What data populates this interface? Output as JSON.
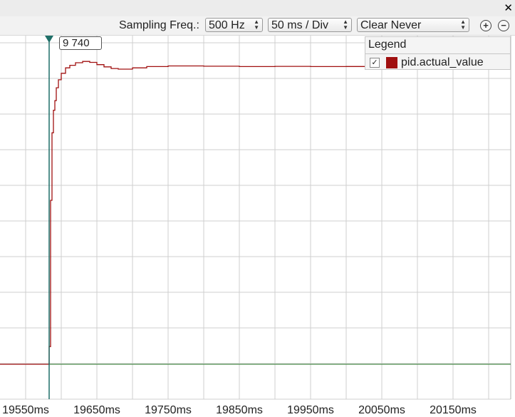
{
  "window": {
    "close_label": "✕"
  },
  "toolbar": {
    "sampling_label": "Sampling Freq.:",
    "sampling_value": "500 Hz",
    "div_value": "50 ms / Div",
    "clear_value": "Clear Never",
    "zoom_in": "+",
    "zoom_out": "−"
  },
  "legend": {
    "title": "Legend",
    "check": "✓",
    "series_label": "pid.actual_value",
    "series_color": "#a01010"
  },
  "cursor": {
    "value": "9 740",
    "color": "#1f6f68"
  },
  "baseline_color": "#2a7a2a",
  "chart_data": {
    "type": "line",
    "x_tick_labels": [
      "19550ms",
      "19650ms",
      "19750ms",
      "19850ms",
      "19950ms",
      "20050ms",
      "20150ms"
    ],
    "x_ticks": [
      19550,
      19650,
      19750,
      19850,
      19950,
      20050,
      20150
    ],
    "xlim": [
      19514,
      20231
    ],
    "ylim": [
      0,
      10000
    ],
    "cursor_x": 19583,
    "series": [
      {
        "name": "pid.actual_value",
        "points": [
          [
            19514,
            0
          ],
          [
            19582,
            0
          ],
          [
            19583,
            550
          ],
          [
            19585,
            5100
          ],
          [
            19587,
            7200
          ],
          [
            19589,
            7900
          ],
          [
            19591,
            8200
          ],
          [
            19593,
            8600
          ],
          [
            19596,
            8850
          ],
          [
            19600,
            9050
          ],
          [
            19606,
            9220
          ],
          [
            19612,
            9300
          ],
          [
            19620,
            9380
          ],
          [
            19630,
            9420
          ],
          [
            19640,
            9390
          ],
          [
            19650,
            9320
          ],
          [
            19660,
            9250
          ],
          [
            19670,
            9200
          ],
          [
            19680,
            9180
          ],
          [
            19700,
            9220
          ],
          [
            19720,
            9260
          ],
          [
            19750,
            9280
          ],
          [
            19800,
            9270
          ],
          [
            19850,
            9260
          ],
          [
            19900,
            9265
          ],
          [
            19950,
            9260
          ],
          [
            20000,
            9262
          ],
          [
            20050,
            9260
          ],
          [
            20100,
            9261
          ],
          [
            20150,
            9260
          ],
          [
            20231,
            9260
          ]
        ]
      }
    ]
  }
}
